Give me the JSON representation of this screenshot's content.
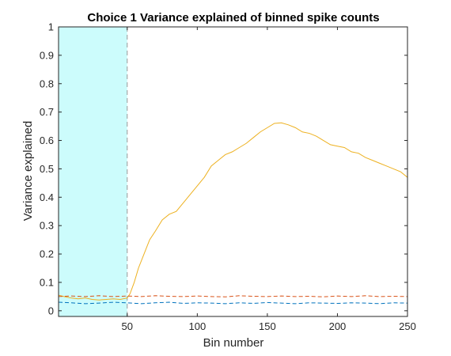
{
  "chart_data": {
    "type": "line",
    "title": "Choice 1 Variance explained of binned spike counts",
    "xlabel": "Bin number",
    "ylabel": "Variance explained",
    "xlim": [
      1,
      250
    ],
    "ylim": [
      -0.02,
      1
    ],
    "xticks": [
      50,
      100,
      150,
      200,
      250
    ],
    "yticks": [
      0,
      0.1,
      0.2,
      0.3,
      0.4,
      0.5,
      0.6,
      0.7,
      0.8,
      0.9,
      1
    ],
    "grid": false,
    "legend": "none",
    "shaded_region": {
      "x": [
        1,
        50
      ],
      "color": "#ccfcfc"
    },
    "vertical_line": {
      "x": 50,
      "style": "dashed",
      "color": "#999999"
    },
    "series": [
      {
        "color": "#edb120",
        "style": "solid",
        "x": [
          1,
          5,
          10,
          15,
          20,
          25,
          30,
          35,
          40,
          45,
          50,
          52,
          55,
          58,
          62,
          66,
          70,
          75,
          80,
          85,
          90,
          95,
          100,
          105,
          110,
          115,
          120,
          125,
          130,
          135,
          140,
          145,
          150,
          155,
          160,
          165,
          170,
          175,
          180,
          185,
          190,
          195,
          200,
          205,
          210,
          215,
          220,
          225,
          230,
          235,
          240,
          245,
          250
        ],
        "y": [
          0.055,
          0.05,
          0.045,
          0.042,
          0.045,
          0.04,
          0.038,
          0.04,
          0.042,
          0.04,
          0.045,
          0.06,
          0.1,
          0.15,
          0.2,
          0.25,
          0.28,
          0.32,
          0.34,
          0.35,
          0.38,
          0.41,
          0.44,
          0.47,
          0.51,
          0.53,
          0.55,
          0.56,
          0.575,
          0.59,
          0.61,
          0.63,
          0.645,
          0.66,
          0.662,
          0.655,
          0.645,
          0.63,
          0.625,
          0.615,
          0.6,
          0.585,
          0.58,
          0.575,
          0.56,
          0.555,
          0.54,
          0.53,
          0.52,
          0.51,
          0.5,
          0.49,
          0.47
        ]
      },
      {
        "color": "#d95319",
        "style": "dashed",
        "x": [
          1,
          10,
          20,
          30,
          40,
          50,
          60,
          70,
          80,
          90,
          100,
          110,
          120,
          130,
          140,
          150,
          160,
          170,
          180,
          190,
          200,
          210,
          220,
          230,
          240,
          250
        ],
        "y": [
          0.05,
          0.052,
          0.05,
          0.053,
          0.05,
          0.052,
          0.05,
          0.053,
          0.051,
          0.05,
          0.052,
          0.05,
          0.049,
          0.053,
          0.051,
          0.05,
          0.052,
          0.05,
          0.051,
          0.049,
          0.052,
          0.05,
          0.053,
          0.05,
          0.051,
          0.05
        ]
      },
      {
        "color": "#0072bd",
        "style": "dashed",
        "x": [
          1,
          10,
          20,
          30,
          40,
          50,
          60,
          70,
          80,
          90,
          100,
          110,
          120,
          130,
          140,
          150,
          160,
          170,
          180,
          190,
          200,
          210,
          220,
          230,
          240,
          250
        ],
        "y": [
          0.03,
          0.028,
          0.025,
          0.027,
          0.03,
          0.028,
          0.025,
          0.028,
          0.03,
          0.026,
          0.028,
          0.027,
          0.025,
          0.028,
          0.026,
          0.029,
          0.027,
          0.025,
          0.028,
          0.027,
          0.026,
          0.028,
          0.027,
          0.025,
          0.028,
          0.027
        ]
      }
    ]
  }
}
